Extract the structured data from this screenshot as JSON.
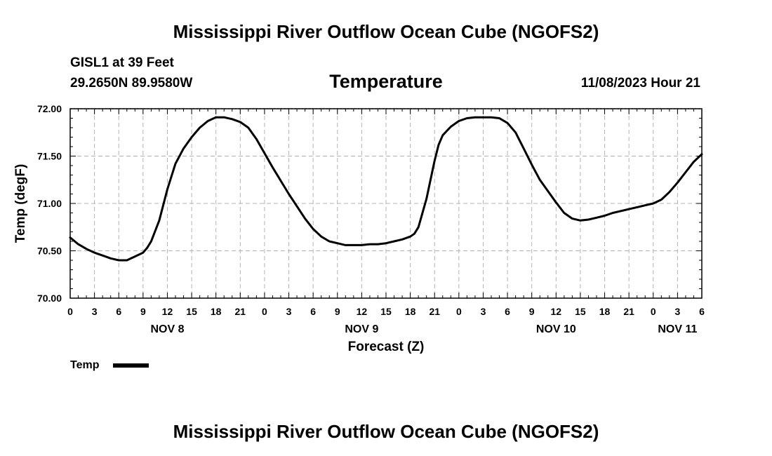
{
  "chart_data": {
    "type": "line",
    "title": "Mississippi River Outflow Ocean Cube (NGOFS2)",
    "footer_title": "Mississippi River Outflow Ocean Cube (NGOFS2)",
    "station": "GISL1 at 39 Feet",
    "coordinates": "29.2650N  89.9580W",
    "variable": "Temperature",
    "timestamp": "11/08/2023 Hour 21",
    "xlabel": "Forecast (Z)",
    "ylabel": "Temp (degF)",
    "ylim": [
      70.0,
      72.0
    ],
    "xlim_hours": [
      0,
      78
    ],
    "y_ticks": [
      "70.00",
      "70.50",
      "71.00",
      "71.50",
      "72.00"
    ],
    "x_tick_labels": [
      "0",
      "3",
      "6",
      "9",
      "12",
      "15",
      "18",
      "21",
      "0",
      "3",
      "6",
      "9",
      "12",
      "15",
      "18",
      "21",
      "0",
      "3",
      "6",
      "9",
      "12",
      "15",
      "18",
      "21",
      "0",
      "3",
      "6"
    ],
    "day_labels": [
      {
        "label": "NOV 8",
        "hour": 12
      },
      {
        "label": "NOV 9",
        "hour": 36
      },
      {
        "label": "NOV 10",
        "hour": 60
      },
      {
        "label": "NOV 11",
        "hour": 75
      }
    ],
    "grid": true,
    "legend": {
      "position": "bottom-left",
      "label": "Temp"
    },
    "series": [
      {
        "name": "Temp",
        "color": "#000000",
        "points": [
          [
            0,
            70.64
          ],
          [
            1,
            70.57
          ],
          [
            2,
            70.52
          ],
          [
            3,
            70.48
          ],
          [
            4,
            70.45
          ],
          [
            5,
            70.42
          ],
          [
            6,
            70.4
          ],
          [
            7,
            70.4
          ],
          [
            8,
            70.44
          ],
          [
            9,
            70.48
          ],
          [
            9.5,
            70.53
          ],
          [
            10,
            70.6
          ],
          [
            11,
            70.82
          ],
          [
            12,
            71.15
          ],
          [
            13,
            71.42
          ],
          [
            14,
            71.58
          ],
          [
            15,
            71.7
          ],
          [
            16,
            71.8
          ],
          [
            17,
            71.87
          ],
          [
            18,
            71.91
          ],
          [
            19,
            71.91
          ],
          [
            20,
            71.89
          ],
          [
            21,
            71.86
          ],
          [
            22,
            71.8
          ],
          [
            23,
            71.68
          ],
          [
            24,
            71.53
          ],
          [
            25,
            71.38
          ],
          [
            26,
            71.24
          ],
          [
            27,
            71.1
          ],
          [
            28,
            70.97
          ],
          [
            29,
            70.84
          ],
          [
            30,
            70.73
          ],
          [
            31,
            70.65
          ],
          [
            32,
            70.6
          ],
          [
            33,
            70.58
          ],
          [
            34,
            70.56
          ],
          [
            35,
            70.56
          ],
          [
            36,
            70.56
          ],
          [
            37,
            70.57
          ],
          [
            38,
            70.57
          ],
          [
            39,
            70.58
          ],
          [
            40,
            70.6
          ],
          [
            41,
            70.62
          ],
          [
            42,
            70.65
          ],
          [
            42.5,
            70.68
          ],
          [
            43,
            70.75
          ],
          [
            44,
            71.05
          ],
          [
            45,
            71.45
          ],
          [
            45.5,
            71.62
          ],
          [
            46,
            71.72
          ],
          [
            47,
            71.81
          ],
          [
            48,
            71.87
          ],
          [
            49,
            71.9
          ],
          [
            50,
            71.91
          ],
          [
            51,
            71.91
          ],
          [
            52,
            71.91
          ],
          [
            53,
            71.9
          ],
          [
            54,
            71.85
          ],
          [
            55,
            71.75
          ],
          [
            56,
            71.58
          ],
          [
            57,
            71.41
          ],
          [
            58,
            71.25
          ],
          [
            59,
            71.13
          ],
          [
            60,
            71.01
          ],
          [
            61,
            70.9
          ],
          [
            62,
            70.84
          ],
          [
            63,
            70.82
          ],
          [
            64,
            70.83
          ],
          [
            65,
            70.85
          ],
          [
            66,
            70.87
          ],
          [
            67,
            70.9
          ],
          [
            68,
            70.92
          ],
          [
            69,
            70.94
          ],
          [
            70,
            70.96
          ],
          [
            71,
            70.98
          ],
          [
            72,
            71.0
          ],
          [
            73,
            71.04
          ],
          [
            74,
            71.12
          ],
          [
            75,
            71.22
          ],
          [
            76,
            71.33
          ],
          [
            77,
            71.44
          ],
          [
            78,
            71.52
          ]
        ]
      }
    ]
  }
}
